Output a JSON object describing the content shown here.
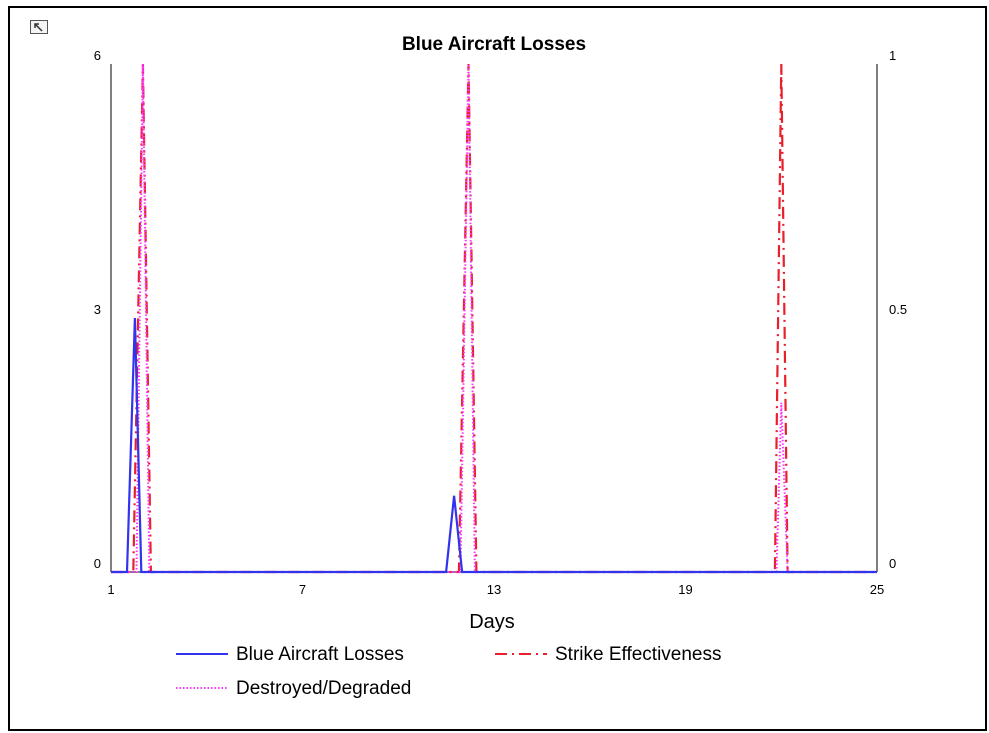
{
  "toolbar": {
    "icon": "restore-icon"
  },
  "chart_data": {
    "type": "line",
    "title": "Blue Aircraft Losses",
    "xlabel": "Days",
    "ylabel": "",
    "y2label": "",
    "xlim": [
      1,
      25
    ],
    "ylim": [
      0,
      6
    ],
    "y2lim": [
      0,
      1
    ],
    "x_ticks": [
      "1",
      "7",
      "13",
      "19",
      "25"
    ],
    "y_ticks": [
      "0",
      "3",
      "6"
    ],
    "y2_ticks": [
      "0",
      "0.5",
      "1"
    ],
    "grid": false,
    "legend_position": "bottom",
    "series": [
      {
        "name": "Blue Aircraft Losses",
        "axis": "left",
        "color": "#3333ee",
        "style": "solid",
        "x": [
          1,
          1.5,
          1.75,
          1.95,
          11.5,
          11.75,
          12.0,
          25
        ],
        "y": [
          0,
          0,
          3,
          0,
          0,
          0.9,
          0,
          0
        ]
      },
      {
        "name": "Strike Effectiveness",
        "axis": "right",
        "color": "#e8202a",
        "style": "dashdot",
        "x": [
          1,
          1.7,
          2.0,
          2.25,
          11.9,
          12.2,
          12.45,
          21.8,
          22.0,
          22.2,
          25
        ],
        "y": [
          0,
          0,
          1,
          0,
          0,
          1,
          0,
          0,
          1,
          0,
          0
        ]
      },
      {
        "name": "Destroyed/Degraded",
        "axis": "left",
        "color": "#ff33ff",
        "style": "dotted",
        "x": [
          1,
          1.8,
          2.0,
          2.2,
          11.95,
          12.2,
          12.4,
          21.85,
          22.0,
          22.2,
          25
        ],
        "y": [
          0,
          0,
          6,
          0,
          0,
          6,
          0,
          0,
          2.0,
          0,
          0
        ]
      }
    ]
  }
}
